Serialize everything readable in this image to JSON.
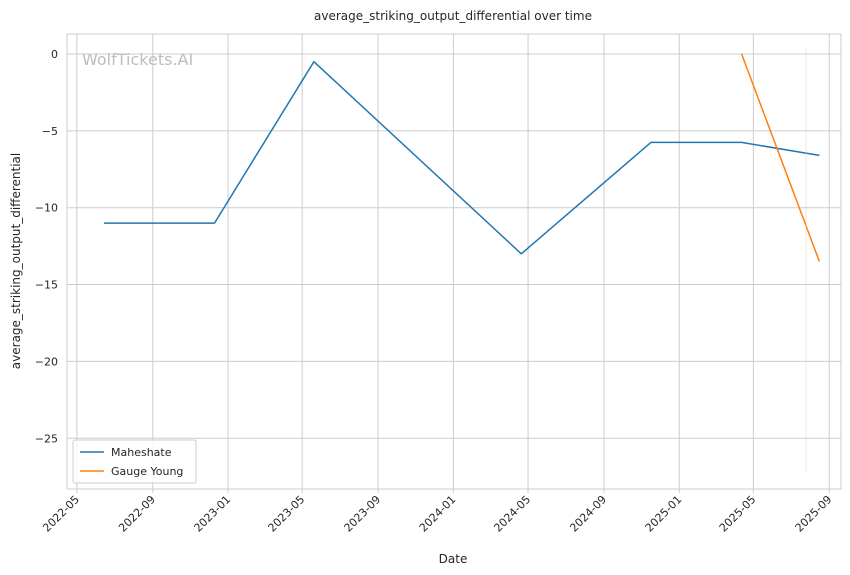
{
  "chart_data": {
    "type": "line",
    "title": "average_striking_output_differential over time",
    "xlabel": "Date",
    "ylabel": "average_striking_output_differential",
    "watermark": "WolfTickets.AI",
    "grid": true,
    "legend_position": "lower-left",
    "xlim": [
      "2022-04-15",
      "2025-09-20"
    ],
    "ylim": [
      -28.3,
      1.3
    ],
    "x_ticks": [
      "2022-05",
      "2022-09",
      "2023-01",
      "2023-05",
      "2023-09",
      "2024-01",
      "2024-05",
      "2024-09",
      "2025-01",
      "2025-05",
      "2025-09"
    ],
    "y_ticks": [
      0,
      -5,
      -10,
      -15,
      -20,
      -25
    ],
    "y_tick_labels": [
      "0",
      "−5",
      "−10",
      "−15",
      "−20",
      "−25"
    ],
    "series": [
      {
        "name": "Maheshate",
        "color": "#1f77b4",
        "points": [
          {
            "x": "2022-06-14",
            "y": -11.0
          },
          {
            "x": "2022-12-10",
            "y": -11.0
          },
          {
            "x": "2023-05-20",
            "y": -0.5
          },
          {
            "x": "2024-04-20",
            "y": -13.0
          },
          {
            "x": "2024-11-16",
            "y": -5.75
          },
          {
            "x": "2025-04-12",
            "y": -5.75
          },
          {
            "x": "2025-08-16",
            "y": -6.6
          }
        ]
      },
      {
        "name": "Gauge Young",
        "color": "#ff7f0e",
        "points": [
          {
            "x": "2025-04-12",
            "y": 0.0
          },
          {
            "x": "2025-08-16",
            "y": -13.5
          }
        ]
      }
    ]
  }
}
